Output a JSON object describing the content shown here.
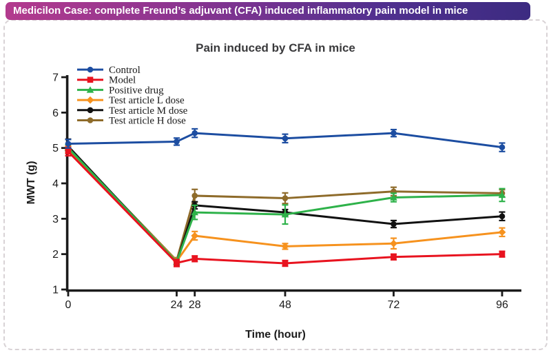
{
  "banner": {
    "title": "Medicilon Case: complete Freund’s adjuvant (CFA) induced inflammatory pain model in mice",
    "gradient_left": "#b33b8e",
    "gradient_right": "#3c2b81",
    "text_color": "#ffffff"
  },
  "card": {
    "border_color": "#d8d2d5",
    "border_style": "dashed"
  },
  "chart_data": {
    "type": "line",
    "title": "Pain induced by CFA in mice",
    "xlabel": "Time (hour)",
    "ylabel": "MWT (g)",
    "x": [
      0,
      24,
      28,
      48,
      72,
      96
    ],
    "x_ticks": [
      "0",
      "24",
      "28",
      "48",
      "72",
      "96"
    ],
    "y_ticks": [
      "1",
      "2",
      "3",
      "4",
      "5",
      "6",
      "7"
    ],
    "ylim": [
      1,
      7
    ],
    "xlim": [
      0,
      96
    ],
    "grid": false,
    "error_bars": true,
    "legend_position": "top-left-inside",
    "axis_color": "#1a1a1a",
    "series": [
      {
        "name": "Control",
        "color": "#1c4da1",
        "marker": "circle",
        "values": [
          5.12,
          5.18,
          5.42,
          5.27,
          5.42,
          5.02
        ],
        "errors": [
          0.12,
          0.1,
          0.12,
          0.12,
          0.1,
          0.12
        ]
      },
      {
        "name": "Model",
        "color": "#e8131f",
        "marker": "square",
        "values": [
          4.9,
          1.75,
          1.87,
          1.74,
          1.92,
          2.0
        ],
        "errors": [
          0.12,
          0.1,
          0.08,
          0.08,
          0.08,
          0.08
        ]
      },
      {
        "name": "Positive drug",
        "color": "#2eb24a",
        "marker": "triangle",
        "values": [
          5.0,
          1.78,
          3.18,
          3.12,
          3.6,
          3.67
        ],
        "errors": [
          0.1,
          0.08,
          0.2,
          0.27,
          0.12,
          0.18
        ]
      },
      {
        "name": "Test article L dose",
        "color": "#f6921e",
        "marker": "diamond",
        "values": [
          4.95,
          1.8,
          2.52,
          2.22,
          2.3,
          2.62
        ],
        "errors": [
          0.1,
          0.08,
          0.12,
          0.08,
          0.15,
          0.12
        ]
      },
      {
        "name": "Test article M dose",
        "color": "#111111",
        "marker": "circle",
        "values": [
          5.05,
          1.76,
          3.38,
          3.18,
          2.85,
          3.07
        ],
        "errors": [
          0.2,
          0.08,
          0.1,
          0.08,
          0.1,
          0.12
        ]
      },
      {
        "name": "Test article H dose",
        "color": "#8e6b2a",
        "marker": "circle",
        "values": [
          5.0,
          1.82,
          3.65,
          3.58,
          3.77,
          3.72
        ],
        "errors": [
          0.1,
          0.08,
          0.18,
          0.15,
          0.12,
          0.1
        ]
      }
    ]
  }
}
